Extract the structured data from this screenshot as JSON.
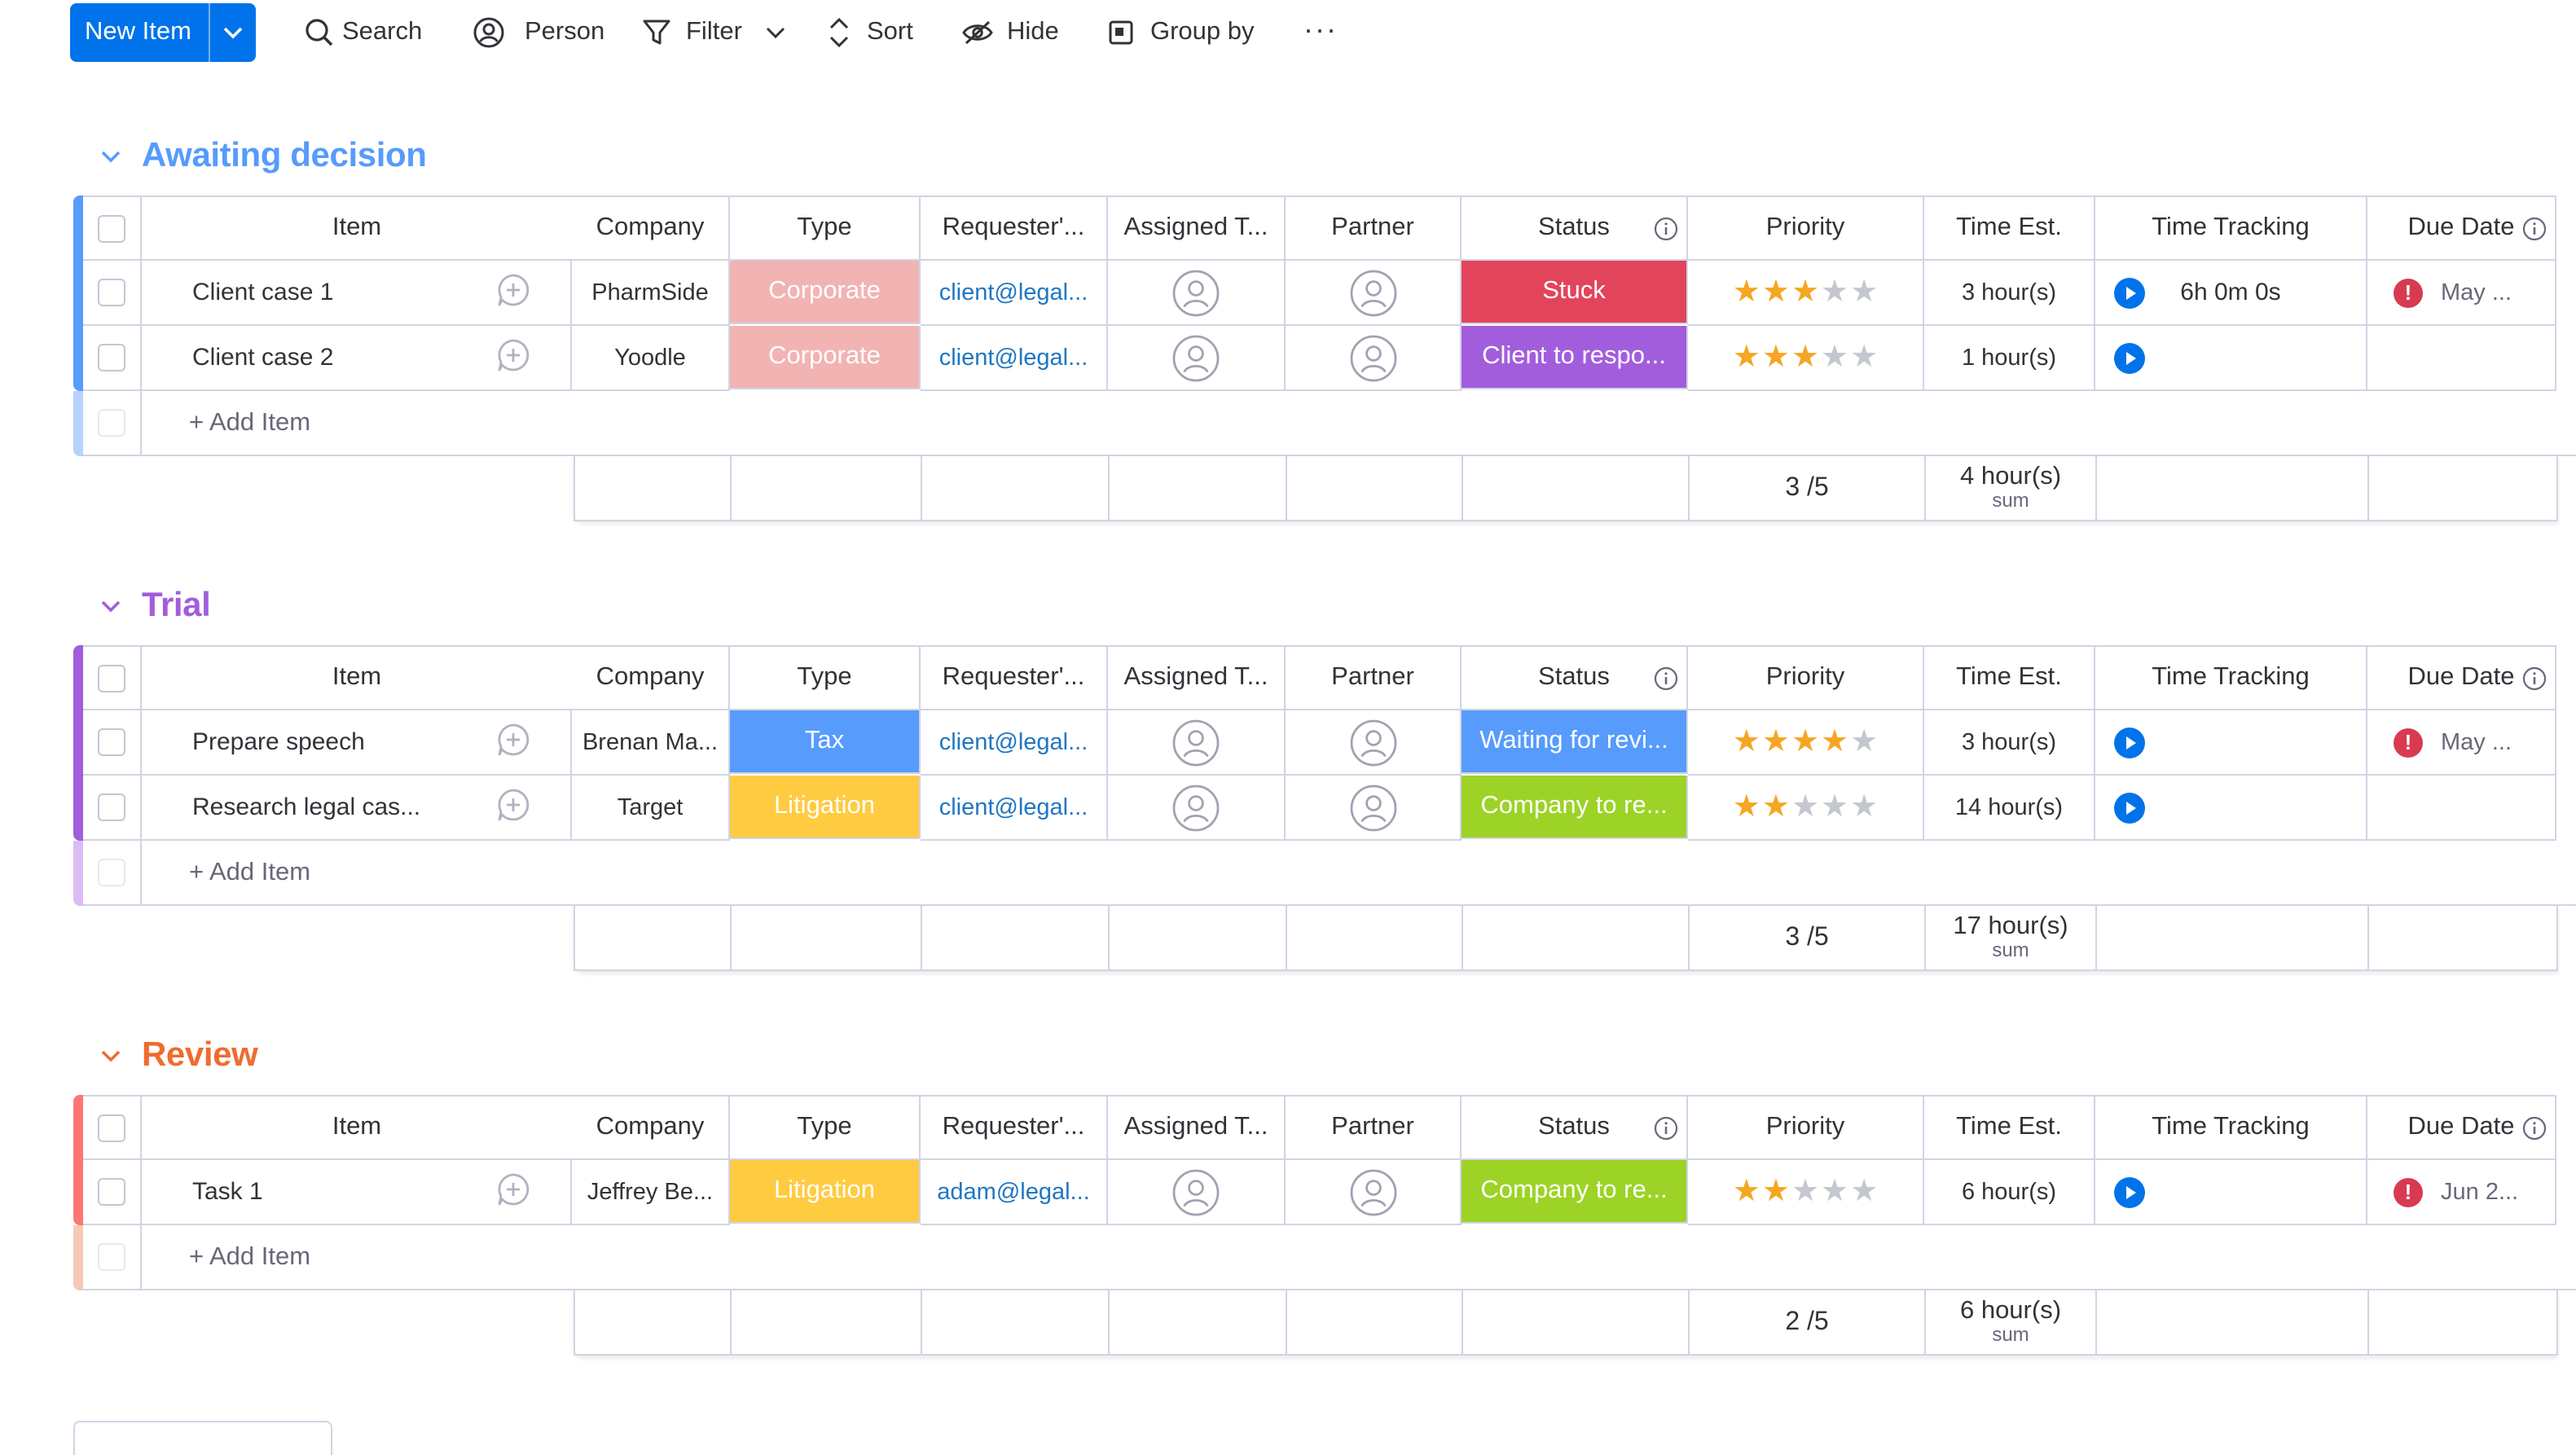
{
  "toolbar": {
    "new_item": "New Item",
    "search": "Search",
    "person": "Person",
    "filter": "Filter",
    "sort": "Sort",
    "hide": "Hide",
    "group_by": "Group by",
    "more": "···"
  },
  "columns": {
    "item": "Item",
    "company": "Company",
    "type": "Type",
    "requester": "Requester'...",
    "assigned": "Assigned T...",
    "partner": "Partner",
    "status": "Status",
    "priority": "Priority",
    "time_est": "Time Est.",
    "time_tracking": "Time Tracking",
    "due_date": "Due Date"
  },
  "add_item": "+ Add Item",
  "colors": {
    "corporate": "#f2b3b3",
    "tax": "#579bfc",
    "litigation": "#ffcb41",
    "stuck": "#e2445c",
    "client_to_respond": "#a25ddc",
    "waiting_for_review": "#579bfc",
    "company_to_respond": "#9cd326",
    "awaiting": "#579bfc",
    "trial": "#a25ddc",
    "review": "#ff7575"
  },
  "groups": [
    {
      "title": "Awaiting decision",
      "rows": [
        {
          "item": "Client case 1",
          "company": "PharmSide",
          "type": "Corporate",
          "requester": "client@legal...",
          "status": "Stuck",
          "priority": 3,
          "time_est": "3 hour(s)",
          "tracking": "6h 0m 0s",
          "due": "May ..."
        },
        {
          "item": "Client case 2",
          "company": "Yoodle",
          "type": "Corporate",
          "requester": "client@legal...",
          "status": "Client to respo...",
          "priority": 3,
          "time_est": "1 hour(s)",
          "tracking": "",
          "due": ""
        }
      ],
      "summary": {
        "priority": "3 /5",
        "time_est": "4 hour(s)",
        "time_label": "sum"
      }
    },
    {
      "title": "Trial",
      "rows": [
        {
          "item": "Prepare speech",
          "company": "Brenan Ma...",
          "type": "Tax",
          "requester": "client@legal...",
          "status": "Waiting for revi...",
          "priority": 4,
          "time_est": "3 hour(s)",
          "tracking": "",
          "due": "May ..."
        },
        {
          "item": "Research legal cas...",
          "company": "Target",
          "type": "Litigation",
          "requester": "client@legal...",
          "status": "Company to re...",
          "priority": 2,
          "time_est": "14 hour(s)",
          "tracking": "",
          "due": ""
        }
      ],
      "summary": {
        "priority": "3 /5",
        "time_est": "17 hour(s)",
        "time_label": "sum"
      }
    },
    {
      "title": "Review",
      "rows": [
        {
          "item": "Task 1",
          "company": "Jeffrey Be...",
          "type": "Litigation",
          "requester": "adam@legal...",
          "status": "Company to re...",
          "priority": 2,
          "time_est": "6 hour(s)",
          "tracking": "",
          "due": "Jun 2..."
        }
      ],
      "summary": {
        "priority": "2 /5",
        "time_est": "6 hour(s)",
        "time_label": "sum"
      }
    }
  ]
}
